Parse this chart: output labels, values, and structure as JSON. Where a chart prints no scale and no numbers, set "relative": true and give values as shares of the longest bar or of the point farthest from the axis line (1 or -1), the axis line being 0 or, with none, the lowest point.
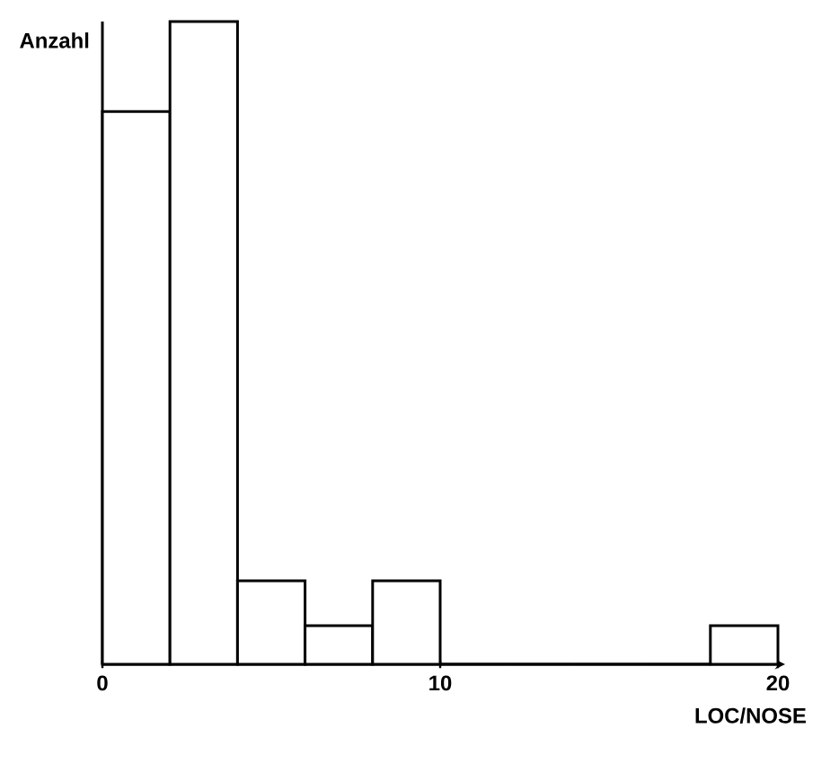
{
  "chart_data": {
    "type": "bar",
    "xlabel": "LOC/NOSE",
    "ylabel": "Anzahl",
    "x": [
      1,
      3,
      5,
      7,
      9,
      11,
      13,
      15,
      17,
      19
    ],
    "values": [
      0.86,
      1,
      0.13,
      0.06,
      0.13,
      0,
      0,
      0,
      0,
      0.06
    ],
    "relative": true,
    "color": "#ffffff",
    "xlim": [
      0,
      20
    ],
    "xticks": [
      0,
      10,
      20
    ]
  }
}
